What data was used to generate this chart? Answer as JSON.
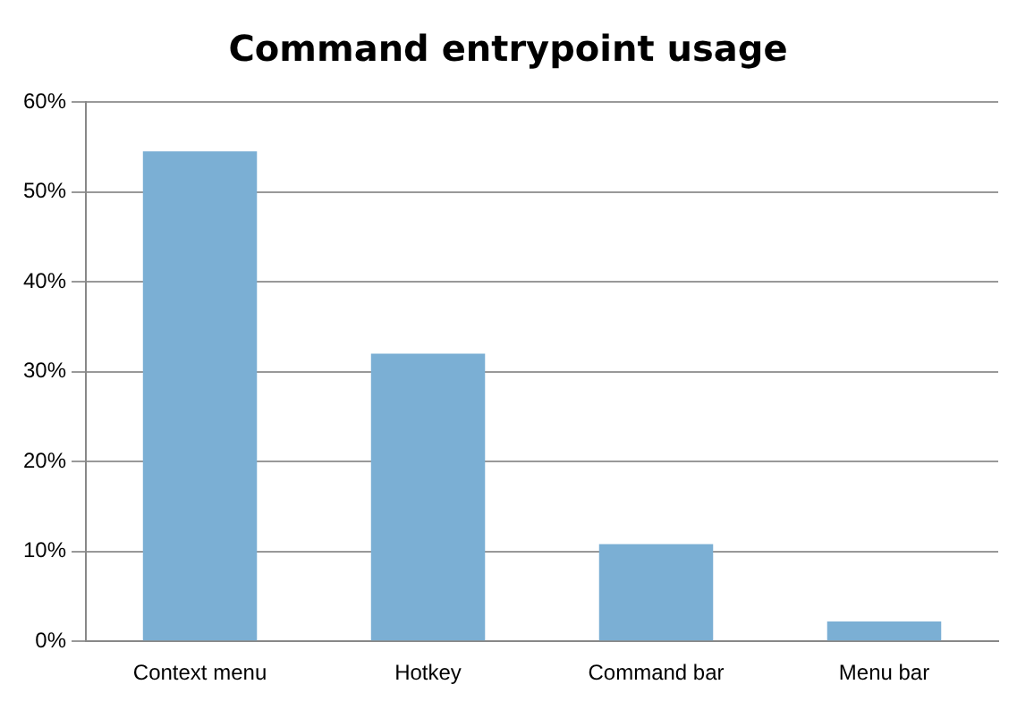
{
  "chart_data": {
    "type": "bar",
    "title": "Command entrypoint usage",
    "categories": [
      "Context menu",
      "Hotkey",
      "Command bar",
      "Menu bar"
    ],
    "values": [
      54.5,
      32,
      10.8,
      2.2
    ],
    "color": "#7bafd4",
    "ylim": [
      0,
      60
    ],
    "yticks": [
      {
        "value": 0,
        "label": "0%"
      },
      {
        "value": 10,
        "label": "10%"
      },
      {
        "value": 20,
        "label": "20%"
      },
      {
        "value": 30,
        "label": "30%"
      },
      {
        "value": 40,
        "label": "40%"
      },
      {
        "value": 50,
        "label": "50%"
      },
      {
        "value": 60,
        "label": "60%"
      }
    ],
    "grid": "y",
    "legend": false
  }
}
